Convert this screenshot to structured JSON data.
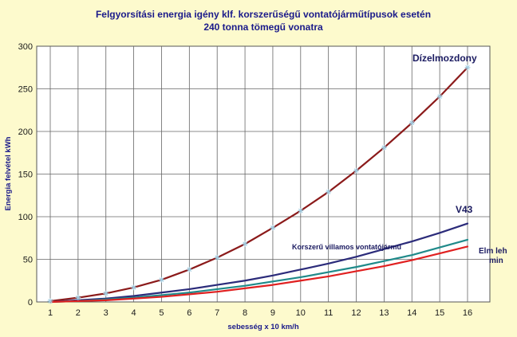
{
  "chart_data": {
    "type": "line",
    "title": "Felgyorsítási energia igény klf. korszerűségű vontatójárműtípusok esetén",
    "subtitle": "240 tonna tömegű vonatra",
    "xlabel": "sebesség x 10 km/h",
    "ylabel": "Energia felvétel kWh",
    "x": [
      1,
      2,
      3,
      4,
      5,
      6,
      7,
      8,
      9,
      10,
      11,
      12,
      13,
      14,
      15,
      16
    ],
    "xlim": [
      1,
      16
    ],
    "ylim": [
      0,
      300
    ],
    "yticks": [
      0,
      50,
      100,
      150,
      200,
      250,
      300
    ],
    "grid": true,
    "legend": "none",
    "series": [
      {
        "name": "Dízelmozdony",
        "color": "#8b1a1a",
        "values": [
          1,
          5,
          10,
          17,
          26,
          38,
          52,
          68,
          87,
          107,
          129,
          154,
          181,
          210,
          241,
          275
        ]
      },
      {
        "name": "V43",
        "color": "#2b2b7a",
        "values": [
          0,
          2,
          4,
          7,
          11,
          15,
          20,
          25,
          31,
          38,
          45,
          53,
          62,
          71,
          81,
          92
        ]
      },
      {
        "name": "Korszerű villamos vontatójármű",
        "color": "#1f8a8a",
        "values": [
          0,
          1,
          3,
          5,
          8,
          11,
          15,
          19,
          24,
          29,
          35,
          41,
          48,
          55,
          64,
          73
        ]
      },
      {
        "name": "Elm leh min",
        "color": "#e02020",
        "values": [
          0,
          1,
          2,
          4,
          6,
          9,
          12,
          16,
          20,
          25,
          30,
          36,
          42,
          49,
          57,
          65
        ]
      }
    ],
    "markers": {
      "color": "#9ecbe0",
      "values": [
        1,
        5,
        10,
        17,
        26,
        38,
        52,
        68,
        87,
        107,
        129,
        154,
        181,
        210,
        241,
        275
      ]
    },
    "annotations": [
      {
        "text": "Dízelmozdony"
      },
      {
        "text": "V43"
      },
      {
        "text": "Korszerű villamos vontatójármű"
      },
      {
        "text": "Elm leh"
      },
      {
        "text": "min"
      }
    ]
  }
}
